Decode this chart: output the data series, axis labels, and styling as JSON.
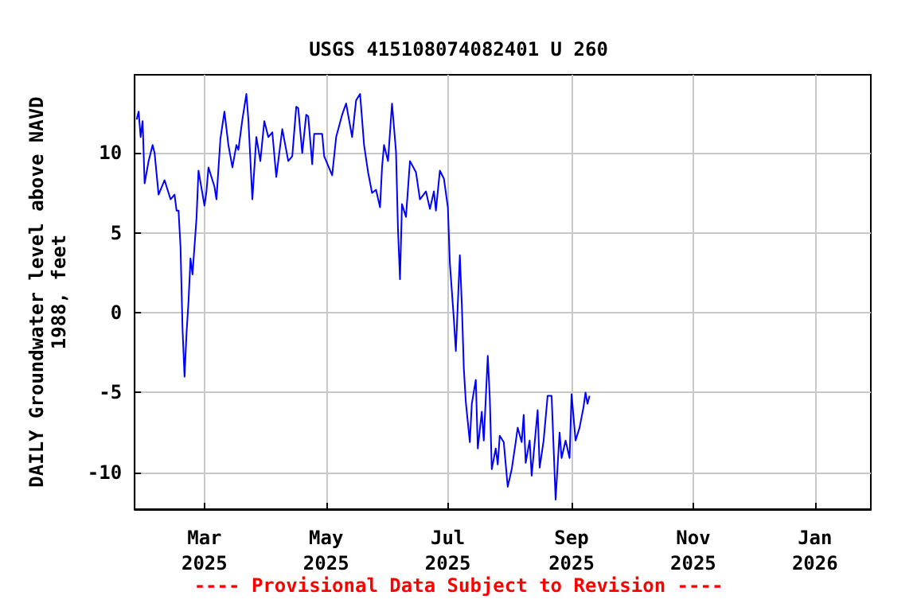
{
  "chart_data": {
    "type": "line",
    "title": "USGS 415108074082401 U 260",
    "ylabel": "DAILY Groundwater level above NAVD\n1988, feet",
    "annotations": [
      "---- Provisional Data Subject to Revision ----"
    ],
    "xlim": [
      "2025-01-25",
      "2026-01-29"
    ],
    "xticks": [
      {
        "value": "2025-03-01",
        "label": "Mar\n2025"
      },
      {
        "value": "2025-05-01",
        "label": "May\n2025"
      },
      {
        "value": "2025-07-01",
        "label": "Jul\n2025"
      },
      {
        "value": "2025-09-01",
        "label": "Sep\n2025"
      },
      {
        "value": "2025-11-01",
        "label": "Nov\n2025"
      },
      {
        "value": "2026-01-01",
        "label": "Jan\n2026"
      }
    ],
    "ylim": [
      -12.3,
      14.9
    ],
    "yticks": [
      -10,
      -5,
      0,
      5,
      10
    ],
    "grid": true,
    "marker": "none",
    "line_style": "solid",
    "series": [
      {
        "color": "#0000ff",
        "x": [
          "2025-01-26",
          "2025-01-27",
          "2025-01-28",
          "2025-01-29",
          "2025-01-30",
          "2025-02-01",
          "2025-02-03",
          "2025-02-04",
          "2025-02-06",
          "2025-02-09",
          "2025-02-12",
          "2025-02-14",
          "2025-02-15",
          "2025-02-16",
          "2025-02-17",
          "2025-02-18",
          "2025-02-19",
          "2025-02-20",
          "2025-02-21",
          "2025-02-22",
          "2025-02-23",
          "2025-02-25",
          "2025-02-26",
          "2025-03-01",
          "2025-03-02",
          "2025-03-03",
          "2025-03-06",
          "2025-03-07",
          "2025-03-09",
          "2025-03-11",
          "2025-03-13",
          "2025-03-15",
          "2025-03-17",
          "2025-03-18",
          "2025-03-20",
          "2025-03-22",
          "2025-03-23",
          "2025-03-25",
          "2025-03-27",
          "2025-03-29",
          "2025-03-31",
          "2025-04-02",
          "2025-04-04",
          "2025-04-06",
          "2025-04-09",
          "2025-04-12",
          "2025-04-14",
          "2025-04-16",
          "2025-04-17",
          "2025-04-19",
          "2025-04-21",
          "2025-04-22",
          "2025-04-24",
          "2025-04-25",
          "2025-04-29",
          "2025-04-30",
          "2025-05-04",
          "2025-05-06",
          "2025-05-09",
          "2025-05-11",
          "2025-05-14",
          "2025-05-16",
          "2025-05-18",
          "2025-05-20",
          "2025-05-22",
          "2025-05-24",
          "2025-05-26",
          "2025-05-28",
          "2025-05-29",
          "2025-05-30",
          "2025-06-01",
          "2025-06-03",
          "2025-06-05",
          "2025-06-06",
          "2025-06-07",
          "2025-06-08",
          "2025-06-10",
          "2025-06-12",
          "2025-06-15",
          "2025-06-17",
          "2025-06-20",
          "2025-06-22",
          "2025-06-24",
          "2025-06-25",
          "2025-06-27",
          "2025-06-29",
          "2025-07-01",
          "2025-07-02",
          "2025-07-04",
          "2025-07-05",
          "2025-07-07",
          "2025-07-08",
          "2025-07-09",
          "2025-07-10",
          "2025-07-12",
          "2025-07-13",
          "2025-07-15",
          "2025-07-16",
          "2025-07-18",
          "2025-07-19",
          "2025-07-21",
          "2025-07-22",
          "2025-07-23",
          "2025-07-25",
          "2025-07-26",
          "2025-07-27",
          "2025-07-29",
          "2025-07-31",
          "2025-08-02",
          "2025-08-04",
          "2025-08-05",
          "2025-08-07",
          "2025-08-08",
          "2025-08-09",
          "2025-08-11",
          "2025-08-12",
          "2025-08-15",
          "2025-08-16",
          "2025-08-18",
          "2025-08-20",
          "2025-08-22",
          "2025-08-24",
          "2025-08-26",
          "2025-08-27",
          "2025-08-29",
          "2025-08-31",
          "2025-09-01",
          "2025-09-03",
          "2025-09-05",
          "2025-09-07",
          "2025-09-08",
          "2025-09-09",
          "2025-09-10"
        ],
        "values": [
          12.1,
          12.6,
          11.0,
          12.0,
          8.1,
          9.5,
          10.5,
          10.0,
          7.4,
          8.3,
          7.1,
          7.4,
          6.4,
          6.4,
          4.1,
          -1.0,
          -4.0,
          -1.3,
          0.7,
          3.4,
          2.4,
          5.9,
          8.9,
          6.7,
          7.6,
          9.1,
          7.9,
          7.1,
          10.9,
          12.6,
          10.5,
          9.1,
          10.5,
          10.2,
          12.1,
          13.7,
          12.1,
          7.1,
          11.0,
          9.5,
          12.0,
          11.0,
          11.3,
          8.5,
          11.5,
          9.5,
          9.8,
          12.9,
          12.8,
          10.0,
          12.4,
          12.3,
          9.3,
          11.2,
          11.2,
          9.8,
          8.6,
          11.0,
          12.4,
          13.1,
          11.0,
          13.3,
          13.7,
          10.5,
          8.8,
          7.5,
          7.7,
          6.6,
          9.1,
          10.5,
          9.5,
          13.1,
          10.1,
          5.2,
          2.1,
          6.8,
          6.0,
          9.5,
          8.8,
          7.1,
          7.6,
          6.5,
          7.6,
          6.4,
          8.9,
          8.4,
          6.6,
          3.1,
          -0.4,
          -2.4,
          3.6,
          0.5,
          -3.5,
          -5.6,
          -8.1,
          -5.7,
          -4.2,
          -8.5,
          -6.2,
          -8.0,
          -2.7,
          -5.3,
          -9.8,
          -8.5,
          -9.5,
          -7.7,
          -8.1,
          -10.9,
          -9.8,
          -8.1,
          -7.2,
          -8.1,
          -6.4,
          -9.4,
          -8.0,
          -10.2,
          -6.1,
          -9.7,
          -8.0,
          -5.2,
          -5.2,
          -11.7,
          -7.5,
          -9.1,
          -8.0,
          -9.1,
          -5.1,
          -8.0,
          -7.2,
          -5.9,
          -5.0,
          -5.7,
          -5.2
        ]
      }
    ]
  }
}
